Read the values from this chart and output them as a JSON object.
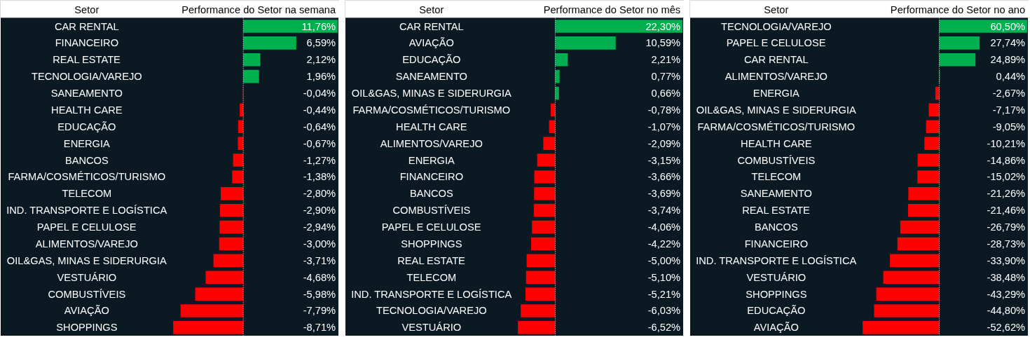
{
  "chart_data": [
    {
      "type": "bar",
      "orientation": "horizontal",
      "title": "Performance do Setor na semana",
      "ylabel": "Setor",
      "categories": [
        "CAR RENTAL",
        "FINANCEIRO",
        "REAL ESTATE",
        "TECNOLOGIA/VAREJO",
        "SANEAMENTO",
        "HEALTH CARE",
        "EDUCAÇÃO",
        "ENERGIA",
        "BANCOS",
        "FARMA/COSMÉTICOS/TURISMO",
        "TELECOM",
        "IND. TRANSPORTE E LOGÍSTICA",
        "PAPEL E CELULOSE",
        "ALIMENTOS/VAREJO",
        "OIL&GAS, MINAS E SIDERURGIA",
        "VESTUÁRIO",
        "COMBUSTÍVEIS",
        "AVIAÇÃO",
        "SHOPPINGS"
      ],
      "values": [
        11.76,
        6.59,
        2.12,
        1.96,
        -0.04,
        -0.44,
        -0.64,
        -0.67,
        -1.27,
        -1.38,
        -2.8,
        -2.9,
        -2.94,
        -3.0,
        -3.71,
        -4.68,
        -5.98,
        -7.79,
        -8.71
      ],
      "value_labels": [
        "11,76%",
        "6,59%",
        "2,12%",
        "1,96%",
        "-0,04%",
        "-0,44%",
        "-0,64%",
        "-0,67%",
        "-1,27%",
        "-1,38%",
        "-2,80%",
        "-2,90%",
        "-2,94%",
        "-3,00%",
        "-3,71%",
        "-4,68%",
        "-5,98%",
        "-7,79%",
        "-8,71%"
      ],
      "colors": [
        "#00b050",
        "#00b050",
        "#00b050",
        "#00b050",
        "#ff0000",
        "#ff0000",
        "#ff0000",
        "#ff0000",
        "#ff0000",
        "#ff0000",
        "#ff0000",
        "#ff0000",
        "#ff0000",
        "#ff0000",
        "#ff0000",
        "#ff0000",
        "#ff0000",
        "#ff0000",
        "#ff0000"
      ],
      "ref_lines": [
        {
          "axis": "x",
          "value": 0,
          "color": "#ffffff",
          "line_style": "dotted"
        }
      ]
    },
    {
      "type": "bar",
      "orientation": "horizontal",
      "title": "Performance do Setor no mês",
      "ylabel": "Setor",
      "categories": [
        "CAR RENTAL",
        "AVIAÇÃO",
        "EDUCAÇÃO",
        "SANEAMENTO",
        "OIL&GAS, MINAS E SIDERURGIA",
        "FARMA/COSMÉTICOS/TURISMO",
        "HEALTH CARE",
        "ALIMENTOS/VAREJO",
        "ENERGIA",
        "FINANCEIRO",
        "BANCOS",
        "COMBUSTÍVEIS",
        "PAPEL E CELULOSE",
        "SHOPPINGS",
        "REAL ESTATE",
        "TELECOM",
        "IND. TRANSPORTE E LOGÍSTICA",
        "TECNOLOGIA/VAREJO",
        "VESTUÁRIO"
      ],
      "values": [
        22.3,
        10.59,
        2.21,
        0.77,
        0.66,
        -0.78,
        -1.07,
        -2.09,
        -3.15,
        -3.66,
        -3.69,
        -3.74,
        -4.06,
        -4.22,
        -5.0,
        -5.1,
        -5.21,
        -6.03,
        -6.52
      ],
      "value_labels": [
        "22,30%",
        "10,59%",
        "2,21%",
        "0,77%",
        "0,66%",
        "-0,78%",
        "-1,07%",
        "-2,09%",
        "-3,15%",
        "-3,66%",
        "-3,69%",
        "-3,74%",
        "-4,06%",
        "-4,22%",
        "-5,00%",
        "-5,10%",
        "-5,21%",
        "-6,03%",
        "-6,52%"
      ],
      "colors": [
        "#00b050",
        "#00b050",
        "#00b050",
        "#00b050",
        "#00b050",
        "#ff0000",
        "#ff0000",
        "#ff0000",
        "#ff0000",
        "#ff0000",
        "#ff0000",
        "#ff0000",
        "#ff0000",
        "#ff0000",
        "#ff0000",
        "#ff0000",
        "#ff0000",
        "#ff0000",
        "#ff0000"
      ],
      "ref_lines": [
        {
          "axis": "x",
          "value": 0,
          "color": "#ffffff",
          "line_style": "dotted"
        }
      ]
    },
    {
      "type": "bar",
      "orientation": "horizontal",
      "title": "Performance do Setor no ano",
      "ylabel": "Setor",
      "categories": [
        "TECNOLOGIA/VAREJO",
        "PAPEL E CELULOSE",
        "CAR RENTAL",
        "ALIMENTOS/VAREJO",
        "ENERGIA",
        "OIL&GAS, MINAS E SIDERURGIA",
        "FARMA/COSMÉTICOS/TURISMO",
        "HEALTH CARE",
        "COMBUSTÍVEIS",
        "TELECOM",
        "SANEAMENTO",
        "REAL ESTATE",
        "BANCOS",
        "FINANCEIRO",
        "IND. TRANSPORTE E LOGÍSTICA",
        "VESTUÁRIO",
        "SHOPPINGS",
        "EDUCAÇÃO",
        "AVIAÇÃO"
      ],
      "values": [
        60.5,
        27.74,
        24.89,
        0.44,
        -2.67,
        -7.17,
        -9.05,
        -10.21,
        -14.86,
        -15.02,
        -21.26,
        -21.46,
        -26.79,
        -28.73,
        -33.9,
        -38.48,
        -43.29,
        -44.8,
        -52.62
      ],
      "value_labels": [
        "60,50%",
        "27,74%",
        "24,89%",
        "0,44%",
        "-2,67%",
        "-7,17%",
        "-9,05%",
        "-10,21%",
        "-14,86%",
        "-15,02%",
        "-21,26%",
        "-21,46%",
        "-26,79%",
        "-28,73%",
        "-33,90%",
        "-38,48%",
        "-43,29%",
        "-44,80%",
        "-52,62%"
      ],
      "colors": [
        "#00b050",
        "#00b050",
        "#00b050",
        "#00b050",
        "#ff0000",
        "#ff0000",
        "#ff0000",
        "#ff0000",
        "#ff0000",
        "#ff0000",
        "#ff0000",
        "#ff0000",
        "#ff0000",
        "#ff0000",
        "#ff0000",
        "#ff0000",
        "#ff0000",
        "#ff0000",
        "#ff0000"
      ],
      "ref_lines": [
        {
          "axis": "x",
          "value": 0,
          "color": "#ffffff",
          "line_style": "dotted"
        }
      ]
    }
  ]
}
